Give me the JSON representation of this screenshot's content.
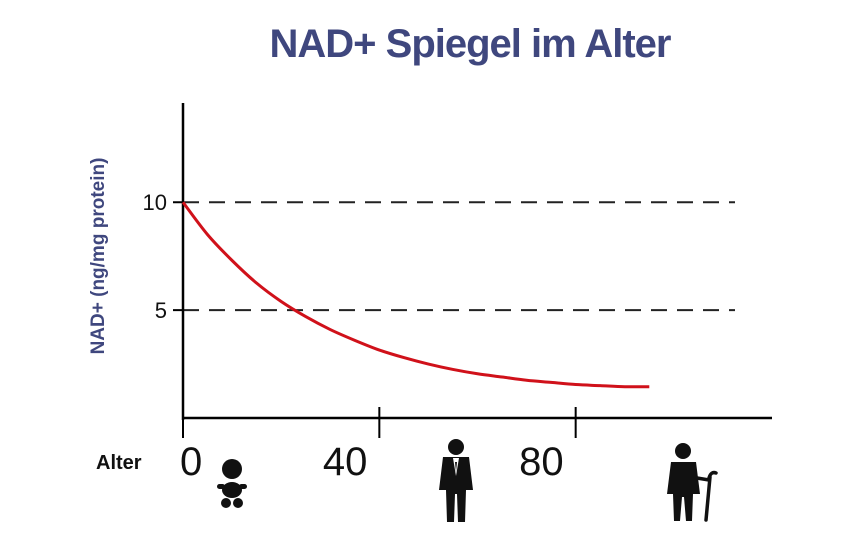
{
  "chart_data": {
    "type": "line",
    "title": "NAD+ Spiegel im Alter",
    "xlabel": "Alter",
    "ylabel": "NAD+ (ng/mg protein)",
    "x_ticks": [
      "0",
      "40",
      "80"
    ],
    "y_ticks": [
      "5",
      "10"
    ],
    "xlim": [
      0,
      120
    ],
    "ylim": [
      0,
      14.6
    ],
    "grid_lines": [
      5,
      10
    ],
    "line_color": "#d0111a",
    "x": [
      0,
      5,
      10,
      15,
      20,
      25,
      30,
      35,
      40,
      45,
      50,
      55,
      60,
      65,
      70,
      75,
      80,
      85,
      90,
      95
    ],
    "y": [
      10.0,
      8.5,
      7.3,
      6.25,
      5.4,
      4.7,
      4.1,
      3.6,
      3.15,
      2.8,
      2.5,
      2.25,
      2.05,
      1.9,
      1.75,
      1.65,
      1.55,
      1.5,
      1.45,
      1.45
    ],
    "icons": [
      "baby-icon",
      "businessman-icon",
      "elderly-person-icon"
    ]
  }
}
